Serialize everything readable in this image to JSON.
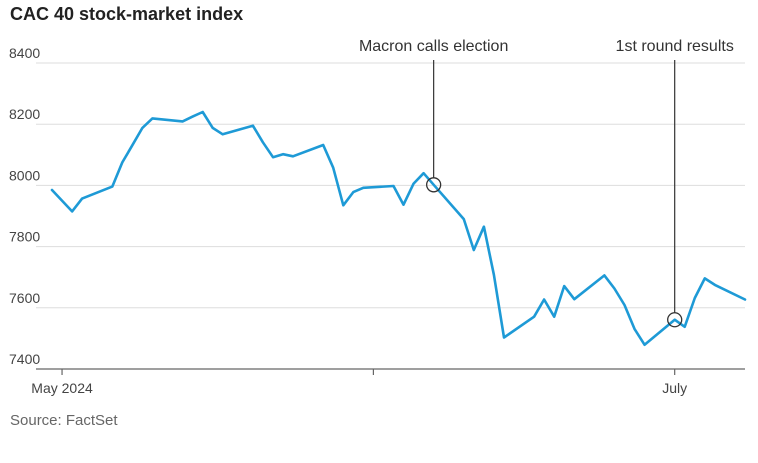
{
  "title": "CAC 40 stock-market index",
  "source": "Source: FactSet",
  "colors": {
    "line": "#1e9ad6",
    "grid": "#dddddd",
    "axis": "#666666",
    "annotation": "#333333"
  },
  "chart_data": {
    "type": "line",
    "title": "CAC 40 stock-market index",
    "ylim": [
      7400,
      8400
    ],
    "yticks": [
      8400,
      8200,
      8000,
      7800,
      7600,
      7400
    ],
    "xticks": [
      {
        "date": "2024-05-01",
        "label": "May 2024"
      },
      {
        "date": "2024-06-01",
        "label": ""
      },
      {
        "date": "2024-07-01",
        "label": "July"
      }
    ],
    "grid": true,
    "series": [
      {
        "points": [
          [
            "2024-04-30",
            7985
          ],
          [
            "2024-05-02",
            7915
          ],
          [
            "2024-05-03",
            7957
          ],
          [
            "2024-05-06",
            7996
          ],
          [
            "2024-05-07",
            8075
          ],
          [
            "2024-05-08",
            8131
          ],
          [
            "2024-05-09",
            8188
          ],
          [
            "2024-05-10",
            8219
          ],
          [
            "2024-05-13",
            8209
          ],
          [
            "2024-05-14",
            8225
          ],
          [
            "2024-05-15",
            8240
          ],
          [
            "2024-05-16",
            8188
          ],
          [
            "2024-05-17",
            8167
          ],
          [
            "2024-05-20",
            8195
          ],
          [
            "2024-05-21",
            8141
          ],
          [
            "2024-05-22",
            8092
          ],
          [
            "2024-05-23",
            8102
          ],
          [
            "2024-05-24",
            8095
          ],
          [
            "2024-05-27",
            8132
          ],
          [
            "2024-05-28",
            8058
          ],
          [
            "2024-05-29",
            7935
          ],
          [
            "2024-05-30",
            7978
          ],
          [
            "2024-05-31",
            7992
          ],
          [
            "2024-06-03",
            7998
          ],
          [
            "2024-06-04",
            7937
          ],
          [
            "2024-06-05",
            8006
          ],
          [
            "2024-06-06",
            8040
          ],
          [
            "2024-06-07",
            8002
          ],
          [
            "2024-06-10",
            7890
          ],
          [
            "2024-06-11",
            7789
          ],
          [
            "2024-06-12",
            7865
          ],
          [
            "2024-06-13",
            7708
          ],
          [
            "2024-06-14",
            7503
          ],
          [
            "2024-06-17",
            7571
          ],
          [
            "2024-06-18",
            7627
          ],
          [
            "2024-06-19",
            7571
          ],
          [
            "2024-06-20",
            7671
          ],
          [
            "2024-06-21",
            7628
          ],
          [
            "2024-06-24",
            7706
          ],
          [
            "2024-06-25",
            7663
          ],
          [
            "2024-06-26",
            7609
          ],
          [
            "2024-06-27",
            7531
          ],
          [
            "2024-06-28",
            7479
          ],
          [
            "2024-07-01",
            7561
          ],
          [
            "2024-07-02",
            7538
          ],
          [
            "2024-07-03",
            7632
          ],
          [
            "2024-07-04",
            7696
          ],
          [
            "2024-07-05",
            7675
          ],
          [
            "2024-07-08",
            7627
          ]
        ]
      }
    ],
    "annotations": [
      {
        "label": "Macron calls election",
        "date": "2024-06-07",
        "value": 8002
      },
      {
        "label": "1st round results",
        "date": "2024-07-01",
        "value": 7561
      }
    ]
  }
}
